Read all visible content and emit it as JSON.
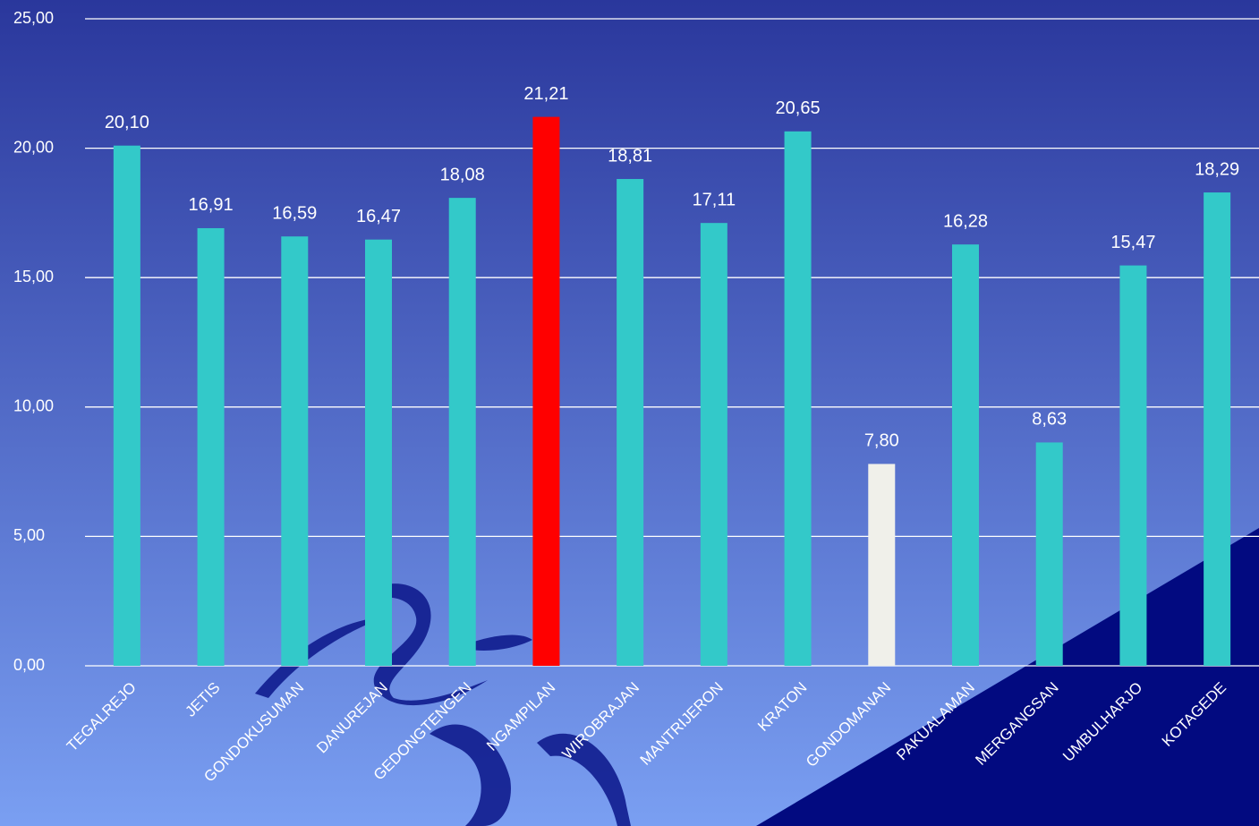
{
  "chart_data": {
    "type": "bar",
    "categories": [
      "TEGALREJO",
      "JETIS",
      "GONDOKUSUMAN",
      "DANUREJAN",
      "GEDONGTENGEN",
      "NGAMPILAN",
      "WIROBRAJAN",
      "MANTRIJERON",
      "KRATON",
      "GONDOMANAN",
      "PAKUALAMAN",
      "MERGANGSAN",
      "UMBULHARJO",
      "KOTAGEDE"
    ],
    "values": [
      20.1,
      16.91,
      16.59,
      16.47,
      18.08,
      21.21,
      18.81,
      17.11,
      20.65,
      7.8,
      16.28,
      8.63,
      15.47,
      18.29
    ],
    "value_labels": [
      "20,10",
      "16,91",
      "16,59",
      "16,47",
      "18,08",
      "21,21",
      "18,81",
      "17,11",
      "20,65",
      "7,80",
      "16,28",
      "8,63",
      "15,47",
      "18,29"
    ],
    "colors": [
      "#33c9c9",
      "#33c9c9",
      "#33c9c9",
      "#33c9c9",
      "#33c9c9",
      "#ff0000",
      "#33c9c9",
      "#33c9c9",
      "#33c9c9",
      "#f0f0ea",
      "#33c9c9",
      "#33c9c9",
      "#33c9c9",
      "#33c9c9"
    ],
    "ylim": [
      0,
      25
    ],
    "yticks": [
      {
        "value": 0,
        "label": "0,00"
      },
      {
        "value": 5,
        "label": "5,00"
      },
      {
        "value": 10,
        "label": "10,00"
      },
      {
        "value": 15,
        "label": "15,00"
      },
      {
        "value": 20,
        "label": "20,00"
      },
      {
        "value": 25,
        "label": "25,00"
      }
    ],
    "grid": true
  }
}
